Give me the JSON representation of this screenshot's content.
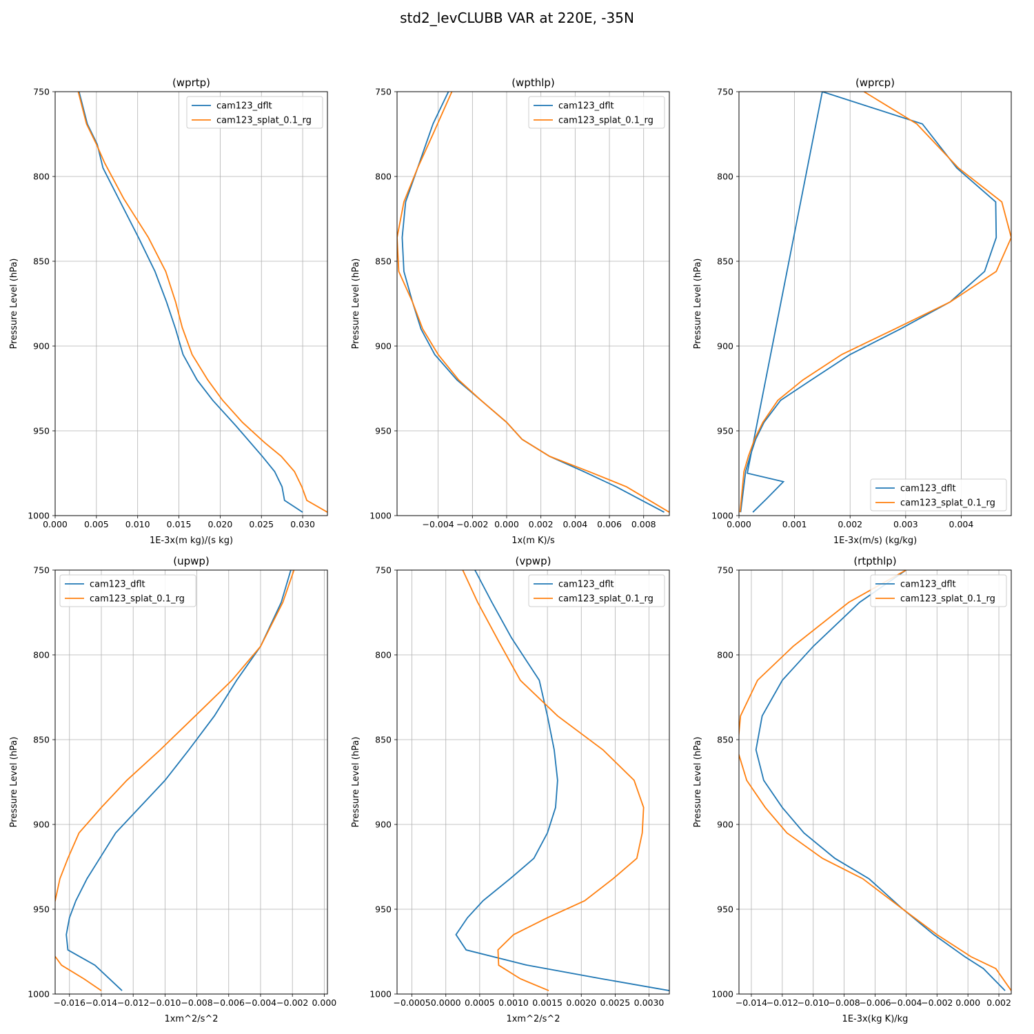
{
  "figure": {
    "title": "std2_levCLUBB VAR at 220E, -35N"
  },
  "colors": {
    "series1": "#1f77b4",
    "series2": "#ff7f0e",
    "grid": "#b0b0b0"
  },
  "chart_data": [
    {
      "type": "line",
      "title": "(wprtp)",
      "xlabel": "1E-3x(m kg)/(s kg)",
      "ylabel": "Pressure Level (hPa)",
      "xlim": [
        0.0,
        0.033
      ],
      "ylim": [
        1000,
        750
      ],
      "xticks": [
        0.0,
        0.005,
        0.01,
        0.015,
        0.02,
        0.025,
        0.03
      ],
      "xtick_labels": [
        "0.000",
        "0.005",
        "0.010",
        "0.015",
        "0.020",
        "0.025",
        "0.030"
      ],
      "yticks": [
        750,
        800,
        850,
        900,
        950,
        1000
      ],
      "ytick_labels": [
        "750",
        "800",
        "850",
        "900",
        "950",
        "1000"
      ],
      "grid": true,
      "legend": "upper right",
      "series": [
        {
          "name": "cam123_dflt",
          "x": [
            0.0029,
            0.0039,
            0.0051,
            0.0058,
            0.008,
            0.0101,
            0.0121,
            0.0135,
            0.0146,
            0.0155,
            0.0172,
            0.0191,
            0.0219,
            0.0251,
            0.0266,
            0.0275,
            0.0278,
            0.03
          ],
          "y": [
            750,
            769,
            781,
            795,
            816,
            836,
            856,
            874,
            890,
            905,
            920,
            932,
            947,
            965,
            974,
            983,
            991,
            998
          ]
        },
        {
          "name": "cam123_splat_0.1_rg",
          "x": [
            0.0028,
            0.0038,
            0.005,
            0.006,
            0.0083,
            0.0113,
            0.0134,
            0.0146,
            0.0154,
            0.0166,
            0.0185,
            0.0203,
            0.0227,
            0.0254,
            0.0274,
            0.029,
            0.0299,
            0.0305,
            0.033
          ],
          "y": [
            750,
            769,
            781,
            792,
            813,
            836,
            856,
            874,
            889,
            905,
            920,
            932,
            945,
            957,
            965,
            974,
            983,
            991,
            998
          ]
        }
      ]
    },
    {
      "type": "line",
      "title": "(wpthlp)",
      "xlabel": "1x(m K)/s",
      "ylabel": "Pressure Level (hPa)",
      "xlim": [
        -0.0064,
        0.0095
      ],
      "ylim": [
        1000,
        750
      ],
      "xticks": [
        -0.004,
        -0.002,
        0.0,
        0.002,
        0.004,
        0.006,
        0.008
      ],
      "xtick_labels": [
        "−0.004",
        "−0.002",
        "0.000",
        "0.002",
        "0.004",
        "0.006",
        "0.008"
      ],
      "yticks": [
        750,
        800,
        850,
        900,
        950,
        1000
      ],
      "ytick_labels": [
        "750",
        "800",
        "850",
        "900",
        "950",
        "1000"
      ],
      "grid": true,
      "legend": "upper right",
      "series": [
        {
          "name": "cam123_dflt",
          "x": [
            -0.0034,
            -0.0043,
            -0.0052,
            -0.0059,
            -0.0061,
            -0.006,
            -0.0055,
            -0.005,
            -0.0042,
            -0.0029,
            -0.0015,
            0.0,
            0.0009,
            0.0025,
            0.0045,
            0.0064,
            0.0092
          ],
          "y": [
            750,
            769,
            795,
            815,
            836,
            856,
            874,
            890,
            905,
            920,
            932,
            945,
            955,
            965,
            974,
            983,
            998
          ]
        },
        {
          "name": "cam123_splat_0.1_rg",
          "x": [
            -0.0032,
            -0.0043,
            -0.0052,
            -0.006,
            -0.0064,
            -0.0063,
            -0.0055,
            -0.0049,
            -0.004,
            -0.0028,
            -0.0015,
            0.0,
            0.0009,
            0.0025,
            0.0048,
            0.007,
            0.0095
          ],
          "y": [
            750,
            775,
            795,
            815,
            836,
            856,
            874,
            890,
            905,
            920,
            932,
            945,
            955,
            965,
            974,
            983,
            998
          ]
        }
      ]
    },
    {
      "type": "line",
      "title": "(wprcp)",
      "xlabel": "1E-3x(m/s) (kg/kg)",
      "ylabel": "Pressure Level (hPa)",
      "xlim": [
        0.0,
        0.0049
      ],
      "ylim": [
        1000,
        750
      ],
      "xticks": [
        0.0,
        0.001,
        0.002,
        0.003,
        0.004
      ],
      "xtick_labels": [
        "0.000",
        "0.001",
        "0.002",
        "0.003",
        "0.004"
      ],
      "yticks": [
        750,
        800,
        850,
        900,
        950,
        1000
      ],
      "ytick_labels": [
        "750",
        "800",
        "850",
        "900",
        "950",
        "1000"
      ],
      "grid": true,
      "legend": "lower right",
      "series": [
        {
          "name": "cam123_dflt",
          "x": [
            0.00025,
            0.0005,
            0.0008,
            0.00015,
            0.0015,
            0.0033,
            0.00392,
            0.00462,
            0.00463,
            0.00442,
            0.0038,
            0.0029,
            0.002,
            0.0013,
            0.00075,
            0.00045,
            0.0003,
            0.0002,
            0.00012,
            3e-05
          ],
          "y": [
            998,
            990,
            980,
            975,
            750,
            769,
            795,
            815,
            836,
            856,
            874,
            890,
            905,
            920,
            932,
            945,
            955,
            965,
            974,
            998
          ]
        },
        {
          "name": "cam123_splat_0.1_rg",
          "x": [
            0.00225,
            0.0032,
            0.00395,
            0.00473,
            0.0049,
            0.00463,
            0.0038,
            0.0028,
            0.00185,
            0.00115,
            0.0007,
            0.00043,
            0.00028,
            0.00017,
            9e-05,
            2e-05
          ],
          "y": [
            750,
            769,
            795,
            815,
            836,
            856,
            874,
            890,
            905,
            920,
            932,
            945,
            955,
            965,
            974,
            998
          ]
        }
      ]
    },
    {
      "type": "line",
      "title": "(upwp)",
      "xlabel": "1xm^2/s^2",
      "ylabel": "Pressure Level (hPa)",
      "xlim": [
        -0.0169,
        0.0002
      ],
      "ylim": [
        1000,
        750
      ],
      "xticks": [
        -0.016,
        -0.014,
        -0.012,
        -0.01,
        -0.008,
        -0.006,
        -0.004,
        -0.002,
        0.0
      ],
      "xtick_labels": [
        "−0.016",
        "−0.014",
        "−0.012",
        "−0.010",
        "−0.008",
        "−0.006",
        "−0.004",
        "−0.002",
        "0.000"
      ],
      "yticks": [
        750,
        800,
        850,
        900,
        950,
        1000
      ],
      "ytick_labels": [
        "750",
        "800",
        "850",
        "900",
        "950",
        "1000"
      ],
      "grid": true,
      "legend": "upper left",
      "series": [
        {
          "name": "cam123_dflt",
          "x": [
            -0.0021,
            -0.0027,
            -0.004,
            -0.0055,
            -0.0069,
            -0.0085,
            -0.01,
            -0.0116,
            -0.0131,
            -0.0141,
            -0.0149,
            -0.0156,
            -0.016,
            -0.0162,
            -0.0161,
            -0.0144,
            -0.0127
          ],
          "y": [
            750,
            769,
            795,
            815,
            836,
            856,
            874,
            890,
            905,
            920,
            932,
            945,
            955,
            965,
            974,
            983,
            998
          ]
        },
        {
          "name": "cam123_splat_0.1_rg",
          "x": [
            -0.0019,
            -0.0026,
            -0.004,
            -0.0058,
            -0.0081,
            -0.0103,
            -0.0124,
            -0.014,
            -0.0154,
            -0.0161,
            -0.0166,
            -0.0169,
            -0.0172,
            -0.0174,
            -0.0172,
            -0.0165,
            -0.0151,
            -0.014
          ],
          "y": [
            750,
            769,
            795,
            815,
            836,
            856,
            874,
            890,
            905,
            920,
            932,
            945,
            955,
            965,
            974,
            983,
            991,
            998
          ]
        }
      ]
    },
    {
      "type": "line",
      "title": "(vpwp)",
      "xlabel": "1xm^2/s^2",
      "ylabel": "Pressure Level (hPa)",
      "xlim": [
        -0.00072,
        0.0033
      ],
      "ylim": [
        1000,
        750
      ],
      "xticks": [
        -0.0005,
        0.0,
        0.0005,
        0.001,
        0.0015,
        0.002,
        0.0025,
        0.003
      ],
      "xtick_labels": [
        "−0.0005",
        "0.0000",
        "0.0005",
        "0.0010",
        "0.0015",
        "0.0020",
        "0.0025",
        "0.0030"
      ],
      "yticks": [
        750,
        800,
        850,
        900,
        950,
        1000
      ],
      "ytick_labels": [
        "750",
        "800",
        "850",
        "900",
        "950",
        "1000"
      ],
      "grid": true,
      "legend": "upper right",
      "series": [
        {
          "name": "cam123_dflt",
          "x": [
            0.00043,
            0.00068,
            0.00097,
            0.00138,
            0.0015,
            0.0016,
            0.00165,
            0.00162,
            0.0015,
            0.0013,
            0.00095,
            0.00055,
            0.00032,
            0.00015,
            0.0003,
            0.0012,
            0.0023,
            0.0033
          ],
          "y": [
            750,
            769,
            790,
            815,
            836,
            856,
            874,
            890,
            905,
            920,
            932,
            945,
            955,
            965,
            974,
            983,
            991,
            998
          ]
        },
        {
          "name": "cam123_splat_0.1_rg",
          "x": [
            0.00025,
            0.00047,
            0.00078,
            0.0011,
            0.00165,
            0.00232,
            0.00278,
            0.00292,
            0.0029,
            0.00282,
            0.00247,
            0.00205,
            0.0015,
            0.001,
            0.00077,
            0.00078,
            0.0011,
            0.00152
          ],
          "y": [
            750,
            769,
            792,
            815,
            836,
            856,
            874,
            890,
            905,
            920,
            932,
            945,
            955,
            965,
            974,
            983,
            991,
            998
          ]
        }
      ]
    },
    {
      "type": "line",
      "title": "(rtpthlp)",
      "xlabel": "1E-3x(kg K)/kg",
      "ylabel": "Pressure Level (hPa)",
      "xlim": [
        -0.0148,
        0.0028
      ],
      "ylim": [
        1000,
        750
      ],
      "xticks": [
        -0.014,
        -0.012,
        -0.01,
        -0.008,
        -0.006,
        -0.004,
        -0.002,
        0.0,
        0.002
      ],
      "xtick_labels": [
        "−0.014",
        "−0.012",
        "−0.010",
        "−0.008",
        "−0.006",
        "−0.004",
        "−0.002",
        "0.000",
        "0.002"
      ],
      "yticks": [
        750,
        800,
        850,
        900,
        950,
        1000
      ],
      "ytick_labels": [
        "750",
        "800",
        "850",
        "900",
        "950",
        "1000"
      ],
      "grid": true,
      "legend": "upper right",
      "series": [
        {
          "name": "cam123_dflt",
          "x": [
            -0.004,
            -0.007,
            -0.01,
            -0.012,
            -0.0133,
            -0.0137,
            -0.0132,
            -0.012,
            -0.0106,
            -0.0086,
            -0.0064,
            -0.0042,
            -0.0022,
            -0.0002,
            0.001,
            0.0024
          ],
          "y": [
            750,
            769,
            795,
            815,
            836,
            856,
            874,
            890,
            905,
            920,
            932,
            950,
            965,
            978,
            985,
            998
          ]
        },
        {
          "name": "cam123_splat_0.1_rg",
          "x": [
            -0.004,
            -0.0077,
            -0.0113,
            -0.0136,
            -0.0147,
            -0.0149,
            -0.0143,
            -0.0131,
            -0.0117,
            -0.0094,
            -0.0068,
            -0.0042,
            -0.002,
            0.0002,
            0.0018,
            0.0028
          ],
          "y": [
            750,
            769,
            795,
            815,
            836,
            856,
            874,
            890,
            905,
            920,
            932,
            950,
            965,
            978,
            985,
            998
          ]
        }
      ]
    }
  ]
}
